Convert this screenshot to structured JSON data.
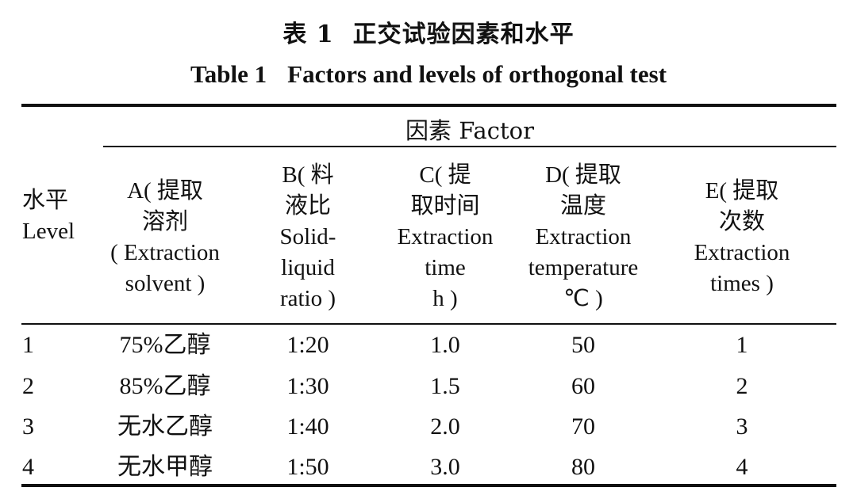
{
  "title_cn": "表 1　正交试验因素和水平",
  "title_cn_parts": [
    "表 1",
    "正交试验因素和水平"
  ],
  "title_en_parts": [
    "Table 1",
    "Factors and levels of orthogonal test"
  ],
  "factor_header": "因素 Factor",
  "level_header": [
    "水平",
    "Level"
  ],
  "columns": [
    {
      "id": "A",
      "lines": [
        "A( 提取",
        "溶剂",
        "( Extraction",
        "solvent )"
      ]
    },
    {
      "id": "B",
      "lines": [
        "B( 料",
        "液比",
        "Solid-",
        "liquid",
        "ratio )"
      ]
    },
    {
      "id": "C",
      "lines": [
        "C( 提",
        "取时间",
        "Extraction",
        "time",
        "h )"
      ]
    },
    {
      "id": "D",
      "lines": [
        "D( 提取",
        "温度",
        "Extraction",
        "temperature",
        "℃ )"
      ]
    },
    {
      "id": "E",
      "lines": [
        "E( 提取",
        "次数",
        "Extraction",
        "times )"
      ]
    }
  ],
  "rows": [
    {
      "level": "1",
      "A": "75%乙醇",
      "B": "1:20",
      "C": "1.0",
      "D": "50",
      "E": "1"
    },
    {
      "level": "2",
      "A": "85%乙醇",
      "B": "1:30",
      "C": "1.5",
      "D": "60",
      "E": "2"
    },
    {
      "level": "3",
      "A": "无水乙醇",
      "B": "1:40",
      "C": "2.0",
      "D": "70",
      "E": "3"
    },
    {
      "level": "4",
      "A": "无水甲醇",
      "B": "1:50",
      "C": "3.0",
      "D": "80",
      "E": "4"
    }
  ]
}
